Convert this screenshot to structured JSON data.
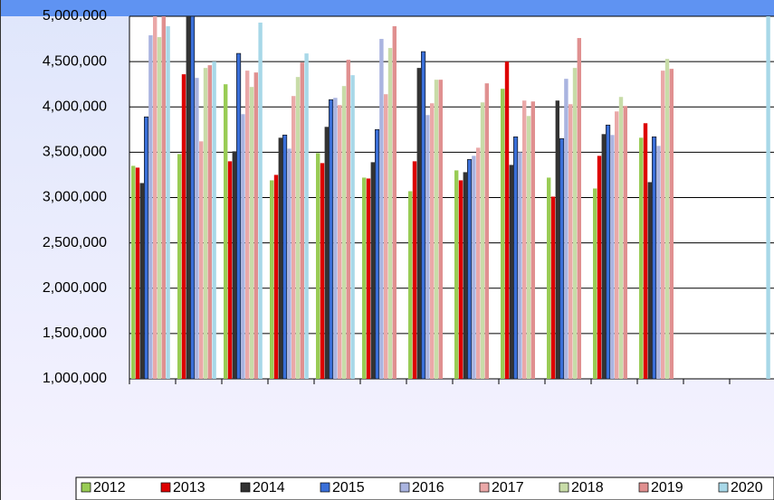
{
  "chart_data": {
    "type": "bar",
    "categories": [
      null,
      null,
      null,
      null,
      null,
      null,
      null,
      null,
      null,
      null,
      null,
      null,
      null,
      null
    ],
    "series": [
      {
        "name": "2012",
        "color": "#99cc55",
        "values": [
          3350000,
          3480000,
          4250000,
          3190000,
          3490000,
          3220000,
          3070000,
          3300000,
          4200000,
          3220000,
          3100000,
          3660000,
          null,
          null
        ]
      },
      {
        "name": "2013",
        "color": "#dd0000",
        "values": [
          3330000,
          4360000,
          3400000,
          3250000,
          3380000,
          3210000,
          3400000,
          3190000,
          4500000,
          3010000,
          3460000,
          3820000,
          null,
          null
        ]
      },
      {
        "name": "2014",
        "color": "#333333",
        "values": [
          3160000,
          5000000,
          3510000,
          3660000,
          3780000,
          3390000,
          4430000,
          3280000,
          3360000,
          4070000,
          3700000,
          3170000,
          null,
          null
        ]
      },
      {
        "name": "2015",
        "color": "#3a6fd8",
        "values": [
          3890000,
          5000000,
          4590000,
          3690000,
          4080000,
          3750000,
          4610000,
          3420000,
          3670000,
          3650000,
          3800000,
          3670000,
          null,
          null
        ]
      },
      {
        "name": "2016",
        "color": "#aab4e0",
        "values": [
          4790000,
          4320000,
          3920000,
          3540000,
          4100000,
          4750000,
          3910000,
          3460000,
          3500000,
          4310000,
          3690000,
          3570000,
          null,
          null
        ]
      },
      {
        "name": "2017",
        "color": "#eaa8a8",
        "values": [
          5000000,
          3620000,
          4400000,
          4120000,
          4020000,
          4140000,
          4040000,
          3550000,
          4070000,
          4030000,
          3950000,
          4400000,
          null,
          null
        ]
      },
      {
        "name": "2018",
        "color": "#c8dca8",
        "values": [
          4770000,
          4430000,
          4220000,
          4330000,
          4230000,
          4650000,
          4300000,
          4050000,
          3900000,
          4430000,
          4110000,
          4530000,
          null,
          null
        ]
      },
      {
        "name": "2019",
        "color": "#e09090",
        "values": [
          5000000,
          4460000,
          4380000,
          4490000,
          4520000,
          4890000,
          4300000,
          4260000,
          4060000,
          4760000,
          4010000,
          4420000,
          null,
          null
        ]
      },
      {
        "name": "2020",
        "color": "#a8d8e8",
        "values": [
          4890000,
          4500000,
          4930000,
          4590000,
          4350000,
          null,
          null,
          null,
          null,
          null,
          null,
          null,
          null,
          5000000
        ]
      }
    ],
    "ylim": [
      1000000,
      5000000
    ],
    "yticks": [
      {
        "value": 1000000,
        "label": "1,000,000"
      },
      {
        "value": 1500000,
        "label": "1,500,000"
      },
      {
        "value": 2000000,
        "label": "2,000,000"
      },
      {
        "value": 2500000,
        "label": "2,500,000"
      },
      {
        "value": 3000000,
        "label": "3,000,000"
      },
      {
        "value": 3500000,
        "label": "3,500,000"
      },
      {
        "value": 4000000,
        "label": "4,000,000"
      },
      {
        "value": 4500000,
        "label": "4,500,000"
      },
      {
        "value": 5000000,
        "label": "5,000,000"
      }
    ],
    "grid": true,
    "legend": "bottom"
  }
}
